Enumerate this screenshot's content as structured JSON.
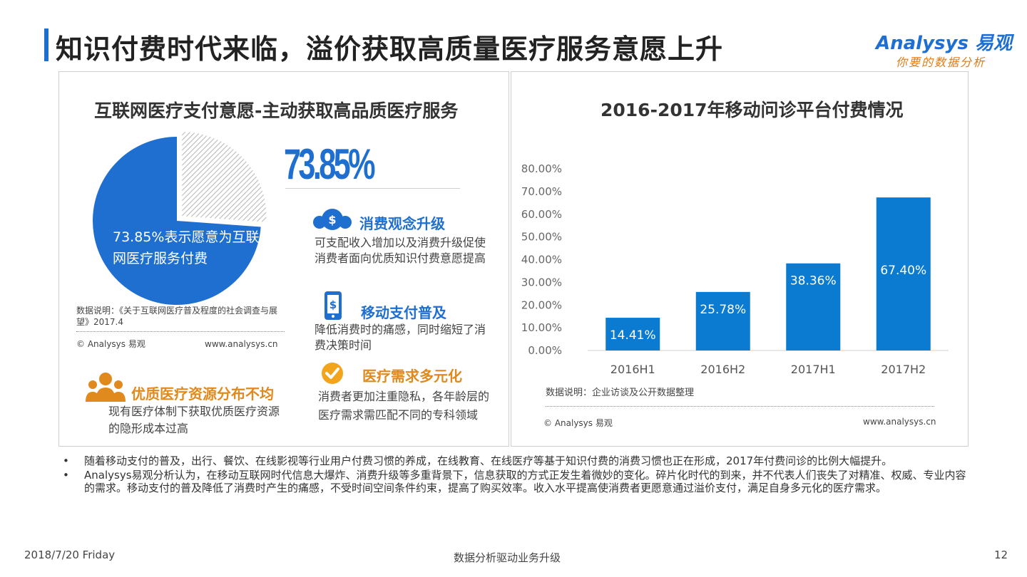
{
  "page": {
    "title": "知识付费时代来临，溢价获取高质量医疗服务意愿上升",
    "logo_text": "Analysys 易观",
    "logo_tagline": "你要的数据分析"
  },
  "left_panel": {
    "title": "互联网医疗支付意愿-主动获取高品质医疗服务",
    "big_percent": "73.85%",
    "pie_value": 73.85,
    "pie_label": "73.85%表示愿意为互联网医疗服务付费",
    "note": "数据说明：《关于互联网医疗普及程度的社会调查与展望》2017.4",
    "copyright": "© Analysys 易观",
    "website": "www.analysys.cn",
    "features": [
      {
        "icon": "money-bag-icon",
        "title": "消费观念升级",
        "text": "可支配收入增加以及消费升级促使消费者面向优质知识付费意愿提高"
      },
      {
        "icon": "mobile-pay-icon",
        "title": "移动支付普及",
        "text": "降低消费时的痛感，同时缩短了消费决策时间"
      },
      {
        "icon": "checkmark-icon",
        "title": "医疗需求多元化",
        "text": "消费者更加注重隐私，各年龄层的医疗需求需匹配不同的专科领域"
      },
      {
        "icon": "people-group-icon",
        "title": "优质医疗资源分布不均",
        "text": "现有医疗体制下获取优质医疗资源的隐形成本过高"
      }
    ],
    "colors": {
      "accent": "#1f6fd1",
      "orange": "#e08a1e"
    }
  },
  "right_panel": {
    "title": "2016-2017年移动问诊平台付费情况",
    "note": "数据说明：企业访谈及公开数据整理",
    "copyright": "© Analysys 易观",
    "website": "www.analysys.cn"
  },
  "chart_data": [
    {
      "type": "pie",
      "slices": [
        {
          "name": "愿意为互联网医疗服务付费",
          "value": 73.85,
          "color": "#1f6fd1"
        },
        {
          "name": "",
          "value": 26.15,
          "color": "#c8c8c8",
          "pattern": "hatch"
        }
      ]
    },
    {
      "type": "bar",
      "categories": [
        "2016H1",
        "2016H2",
        "2017H1",
        "2017H2"
      ],
      "values": [
        14.41,
        25.78,
        38.36,
        67.4
      ],
      "value_labels": [
        "14.41%",
        "25.78%",
        "38.36%",
        "67.40%"
      ],
      "ylim": [
        0,
        80
      ],
      "yticks": [
        "0.00%",
        "10.00%",
        "20.00%",
        "30.00%",
        "40.00%",
        "50.00%",
        "60.00%",
        "70.00%",
        "80.00%"
      ],
      "bar_color": "#0a7bd0",
      "grid": false
    }
  ],
  "bullets": [
    "随着移动支付的普及，出行、餐饮、在线影视等行业用户付费习惯的养成，在线教育、在线医疗等基于知识付费的消费习惯也正在形成，2017年付费问诊的比例大幅提升。",
    "Analysys易观分析认为，在移动互联网时代信息大爆炸、消费升级等多重背景下，信息获取的方式正发生着微妙的变化。碎片化时代的到来，并不代表人们丧失了对精准、权威、专业内容的需求。移动支付的普及降低了消费时产生的痛感，不受时间空间条件约束，提高了购买效率。收入水平提高使消费者更愿意通过溢价支付，满足自身多元化的医疗需求。"
  ],
  "footer": {
    "date": "2018/7/20 Friday",
    "center": "数据分析驱动业务升级",
    "page_number": "12"
  }
}
